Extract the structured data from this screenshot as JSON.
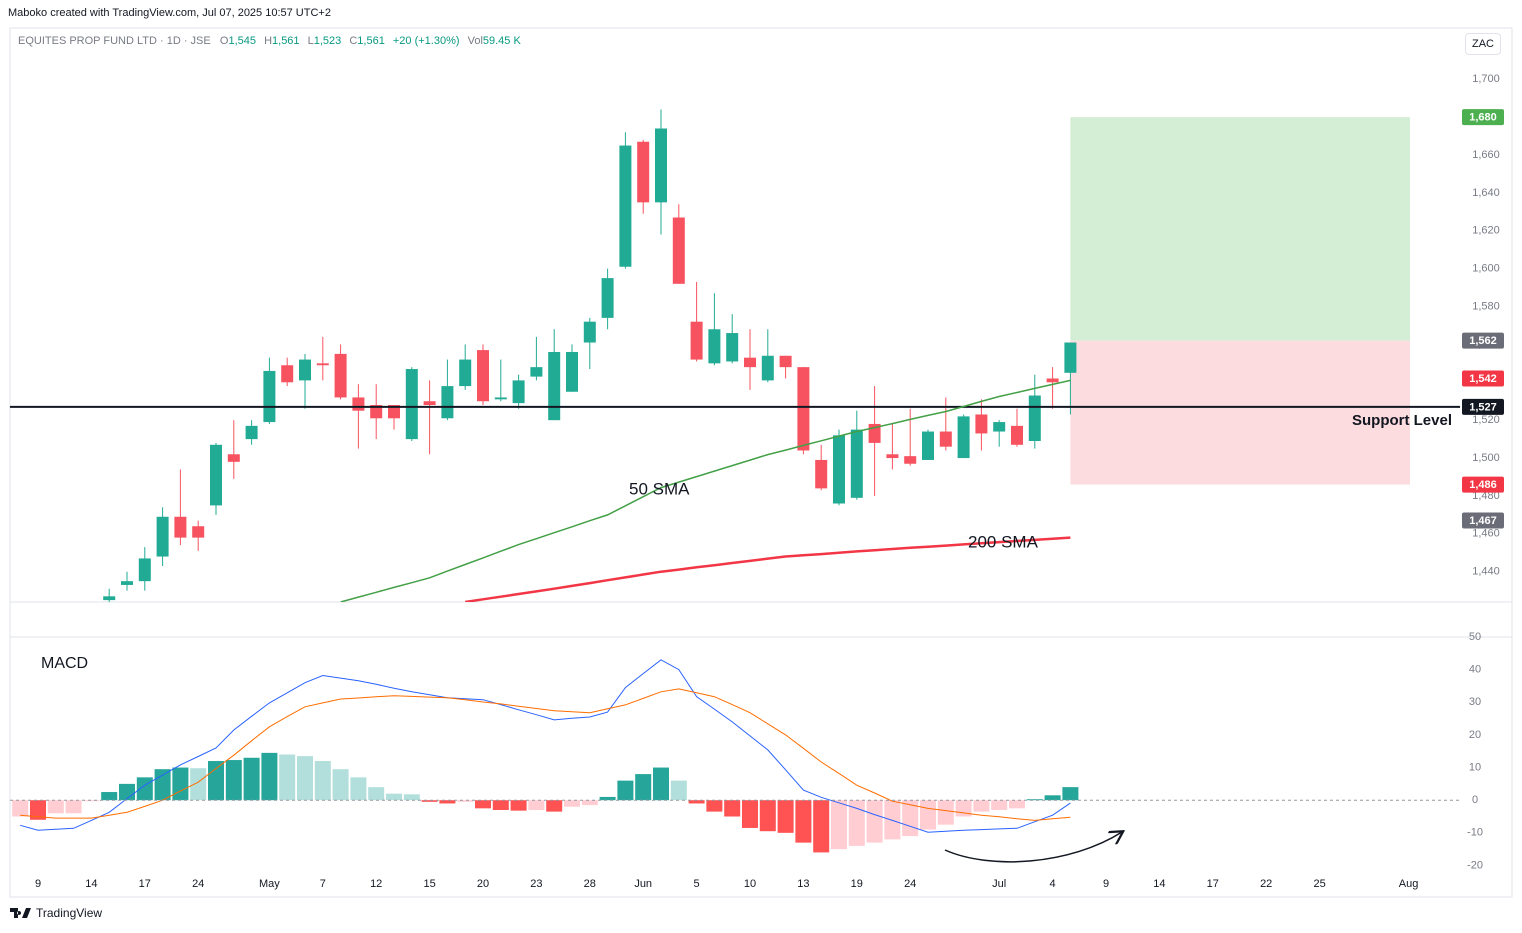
{
  "header": {
    "credit": "Maboko created with TradingView.com, Jul 07, 2025 10:57 UTC+2",
    "symbol": "EQUITES PROP FUND LTD · 1D · JSE",
    "ohlc": [
      {
        "label": "O",
        "value": "1,545"
      },
      {
        "label": "H",
        "value": "1,561"
      },
      {
        "label": "L",
        "value": "1,523"
      },
      {
        "label": "C",
        "value": "1,561"
      }
    ],
    "change": "+20 (+1.30%)",
    "volume": {
      "label": "Vol",
      "value": "59.45 K"
    },
    "currency": "ZAC"
  },
  "footer": {
    "brand": "TradingView"
  },
  "chart_data": {
    "type": "candlestick",
    "categories": [
      null,
      "9",
      null,
      null,
      "14",
      null,
      null,
      "17",
      null,
      null,
      "24",
      null,
      null,
      null,
      "May",
      null,
      null,
      "7",
      null,
      null,
      "12",
      null,
      null,
      "15",
      null,
      null,
      "20",
      null,
      null,
      "23",
      null,
      null,
      "28",
      null,
      null,
      "Jun",
      null,
      null,
      "5",
      null,
      null,
      "10",
      null,
      null,
      "13",
      null,
      null,
      "19",
      null,
      null,
      "24",
      null,
      null,
      null,
      null,
      "Jul",
      null,
      null,
      "4",
      null,
      null,
      "9",
      null,
      null,
      "14",
      null,
      null,
      "17",
      null,
      null,
      "22",
      null,
      null,
      "25",
      null,
      null,
      null,
      null,
      "Aug",
      null,
      null
    ],
    "open": [
      null,
      null,
      null,
      null,
      null,
      1425,
      1433,
      1435,
      1448,
      1469,
      1464,
      1475,
      1502,
      1510,
      1519,
      1549,
      1541,
      1550,
      1555,
      1532,
      1528,
      1528,
      1510,
      1530,
      1521,
      1538,
      1557,
      1531,
      1529,
      1543,
      1520,
      1535,
      1561,
      1574,
      1601,
      1667,
      1635,
      1627,
      1572,
      1550,
      1551,
      1553,
      1541,
      1554,
      1548,
      1499,
      1476,
      1479,
      1518,
      1502,
      1501,
      1499,
      1514,
      1500,
      1523,
      1514,
      1517,
      1509,
      1542,
      1545,
      null,
      null,
      null,
      null,
      null,
      null,
      null,
      null,
      null,
      null,
      null,
      null,
      null,
      null,
      null,
      null,
      null,
      null,
      null,
      null,
      null
    ],
    "high": [
      null,
      null,
      null,
      null,
      null,
      1431,
      1440,
      1453,
      1474,
      1494,
      1467,
      1508,
      1520,
      1520,
      1553,
      1553,
      1555,
      1564,
      1560,
      1539,
      1539,
      1528,
      1548,
      1541,
      1552,
      1560,
      1560,
      1552,
      1544,
      1564,
      1568,
      1560,
      1574,
      1600,
      1672,
      1668,
      1684,
      1634,
      1593,
      1587,
      1576,
      1568,
      1568,
      1554,
      1548,
      1507,
      1515,
      1525,
      1538,
      1518,
      1526,
      1515,
      1532,
      1523,
      1531,
      1520,
      1526,
      1544,
      1548,
      1561,
      null,
      null,
      null,
      null,
      null,
      null,
      null,
      null,
      null,
      null,
      null,
      null,
      null,
      null,
      null,
      null,
      null,
      null,
      null,
      null,
      null
    ],
    "low": [
      null,
      null,
      null,
      null,
      null,
      1424,
      1430,
      1430,
      1443,
      1454,
      1451,
      1470,
      1489,
      1507,
      1518,
      1538,
      1526,
      1541,
      1531,
      1505,
      1510,
      1515,
      1509,
      1502,
      1520,
      1536,
      1528,
      1530,
      1526,
      1541,
      1520,
      1535,
      1547,
      1568,
      1600,
      1629,
      1618,
      1592,
      1551,
      1549,
      1550,
      1536,
      1540,
      1542,
      1502,
      1483,
      1475,
      1478,
      1480,
      1494,
      1496,
      1499,
      1504,
      1500,
      1504,
      1506,
      1506,
      1505,
      1526,
      1523,
      null,
      null,
      null,
      null,
      null,
      null,
      null,
      null,
      null,
      null,
      null,
      null,
      null,
      null,
      null,
      null,
      null,
      null,
      null,
      null,
      null
    ],
    "close": [
      null,
      null,
      null,
      null,
      null,
      1427,
      1435,
      1447,
      1469,
      1458,
      1458,
      1507,
      1498,
      1517,
      1546,
      1540,
      1552,
      1549,
      1532,
      1525,
      1521,
      1521,
      1547,
      1528,
      1538,
      1552,
      1530,
      1532,
      1541,
      1548,
      1556,
      1556,
      1572,
      1595,
      1665,
      1635,
      1674,
      1592,
      1552,
      1568,
      1566,
      1548,
      1554,
      1548,
      1504,
      1484,
      1512,
      1515,
      1508,
      1500,
      1497,
      1514,
      1506,
      1522,
      1513,
      1519,
      1507,
      1533,
      1540,
      1561,
      null,
      null,
      null,
      null,
      null,
      null,
      null,
      null,
      null,
      null,
      null,
      null,
      null,
      null,
      null,
      null,
      null,
      null,
      null,
      null,
      null
    ],
    "up_color": "#22ab94",
    "down_color": "#f7525f",
    "series": [
      {
        "name": "50 SMA",
        "color": "#43a047",
        "values": [
          null,
          null,
          null,
          null,
          null,
          null,
          null,
          null,
          null,
          null,
          null,
          null,
          null,
          null,
          null,
          null,
          null,
          null,
          1424,
          1426.6,
          1429.1,
          1431.7,
          1434.2,
          1436.8,
          1440.3,
          1443.8,
          1447.3,
          1450.8,
          1454.3,
          1457.4,
          1460.6,
          1463.7,
          1466.9,
          1470,
          1474.8,
          1479.6,
          1484.4,
          1487.3,
          1490.2,
          1493.1,
          1496,
          1498.9,
          1501.8,
          1504.2,
          1506.7,
          1509.1,
          1511.6,
          1514,
          1516.1,
          1518.2,
          1520.4,
          1522.5,
          1524.6,
          1527.2,
          1529.9,
          1532.5,
          1534.6,
          1536.8,
          1538.9,
          1541,
          null,
          null,
          null,
          null,
          null,
          null,
          null,
          null,
          null,
          null,
          null,
          null,
          null,
          null,
          null,
          null,
          null,
          null,
          null,
          null,
          null
        ]
      },
      {
        "name": "200 SMA",
        "color": "#f23645",
        "values": [
          null,
          null,
          null,
          null,
          null,
          null,
          null,
          null,
          null,
          null,
          null,
          null,
          null,
          null,
          null,
          null,
          null,
          null,
          null,
          null,
          null,
          null,
          null,
          null,
          null,
          1424,
          1425.4,
          1426.8,
          1428.2,
          1429.6,
          1431,
          1432.5,
          1434,
          1435.5,
          1437,
          1438.5,
          1440,
          1441.1,
          1442.3,
          1443.4,
          1444.6,
          1445.7,
          1446.9,
          1448,
          1448.7,
          1449.3,
          1450,
          1450.7,
          1451.3,
          1452,
          1452.6,
          1453.2,
          1453.8,
          1454.4,
          1455,
          1455.6,
          1456.2,
          1456.8,
          1457.4,
          1458,
          null,
          null,
          null,
          null,
          null,
          null,
          null,
          null,
          null,
          null,
          null,
          null,
          null,
          null,
          null,
          null,
          null,
          null,
          null,
          null,
          null
        ]
      }
    ],
    "ylim": [
      1424,
      1726
    ],
    "yticks": [
      {
        "value": 1440,
        "label": "1,440"
      },
      {
        "value": 1460,
        "label": "1,460"
      },
      {
        "value": 1480,
        "label": "1,480"
      },
      {
        "value": 1500,
        "label": "1,500"
      },
      {
        "value": 1520,
        "label": "1,520"
      },
      {
        "value": 1540,
        "label": "1,540"
      },
      {
        "value": 1560,
        "label": "1,560"
      },
      {
        "value": 1580,
        "label": "1,580"
      },
      {
        "value": 1600,
        "label": "1,600"
      },
      {
        "value": 1620,
        "label": "1,620"
      },
      {
        "value": 1640,
        "label": "1,640"
      },
      {
        "value": 1660,
        "label": "1,660"
      },
      {
        "value": 1680,
        "label": "1,680"
      },
      {
        "value": 1700,
        "label": "1,700"
      }
    ],
    "grid": false,
    "support": {
      "value": 1527,
      "label": "Support Level"
    },
    "position": {
      "target": 1680,
      "entry": 1562,
      "stop": 1486,
      "profit_color": "#d3eed4",
      "loss_color": "#fcdcdf"
    },
    "price_labels": [
      {
        "value": 1680,
        "label": "1,680",
        "color": "#4caf50"
      },
      {
        "value": 1562,
        "label": "1,562",
        "color": "#6a6d78"
      },
      {
        "value": 1542,
        "label": "1,542",
        "color": "#f23645"
      },
      {
        "value": 1527,
        "label": "1,527",
        "color": "#131722"
      },
      {
        "value": 1486,
        "label": "1,486",
        "color": "#f23645"
      },
      {
        "value": 1467,
        "label": "1,467",
        "color": "#6a6d78"
      }
    ],
    "indicator": {
      "type": "macd",
      "title": "MACD",
      "histogram": [
        -5,
        -6,
        -4,
        -4,
        -0.3,
        2.5,
        5,
        7,
        9.5,
        10,
        9.8,
        12,
        12.3,
        13,
        14.5,
        14,
        13.5,
        12,
        9.5,
        7,
        4,
        2,
        1.8,
        -0.5,
        -1,
        -0.5,
        -2.5,
        -3,
        -3.2,
        -3,
        -3.5,
        -2,
        -1.5,
        1,
        6,
        8,
        10,
        6,
        -1,
        -3.5,
        -5,
        -8.5,
        -9.5,
        -10,
        -13,
        -16,
        -15,
        -14,
        -13,
        -12,
        -11,
        -9,
        -7.5,
        -5,
        -3.5,
        -3,
        -2.5,
        0.3,
        1.5,
        4,
        null,
        null,
        null,
        null,
        null,
        null,
        null,
        null,
        null,
        null,
        null,
        null,
        null,
        null,
        null,
        null,
        null,
        null,
        null,
        null,
        null
      ],
      "histogram_colors": [
        "#26a69a",
        "#b2dfdb",
        "#ff5252",
        "#ffcdd2"
      ],
      "series": [
        {
          "color": "#2962ff",
          "values": [
            -7.7,
            -9.2,
            -8.9,
            -8.6,
            -6.2,
            -3.7,
            0.5,
            4.6,
            7.7,
            10.8,
            13.4,
            16,
            21.5,
            25.7,
            29.8,
            32.9,
            36,
            38.2,
            37.4,
            36.6,
            35.5,
            34.3,
            33.2,
            32.3,
            31.4,
            31.1,
            30.8,
            29.3,
            27.7,
            26.2,
            24.6,
            25.1,
            25.5,
            27,
            34.5,
            38.8,
            43,
            40,
            31.7,
            27.9,
            24,
            19.7,
            15.4,
            9.3,
            3.1,
            0.9,
            -0.8,
            -2.5,
            -4.4,
            -6.2,
            -8,
            -9.8,
            -9.5,
            -9.2,
            -9,
            -8.8,
            -8.6,
            -6.6,
            -4.6,
            -0.9,
            null,
            null,
            null,
            null,
            null,
            null,
            null,
            null,
            null,
            null,
            null,
            null,
            null,
            null,
            null,
            null,
            null,
            null,
            null,
            null,
            null
          ]
        },
        {
          "color": "#ff6d00",
          "values": [
            -4.6,
            -5.1,
            -5.5,
            -5.5,
            -5.5,
            -4.6,
            -3.7,
            -1.9,
            0,
            2.8,
            5.5,
            9.7,
            13.8,
            18.2,
            22.5,
            25.6,
            28.6,
            29.8,
            31,
            31.3,
            31.7,
            32,
            31.8,
            31.6,
            31.4,
            30.8,
            30.1,
            29.5,
            28.8,
            28.1,
            27.4,
            27.1,
            26.8,
            28,
            29.2,
            31.2,
            33.2,
            34.1,
            32.9,
            31.7,
            29.3,
            26.8,
            23.4,
            20,
            15.9,
            11.7,
            8.2,
            4.6,
            2.2,
            -0.3,
            -1.4,
            -2.5,
            -3.2,
            -3.9,
            -4.6,
            -5.1,
            -5.7,
            -6.2,
            -5.7,
            -5.2,
            null,
            null,
            null,
            null,
            null,
            null,
            null,
            null,
            null,
            null,
            null,
            null,
            null,
            null,
            null,
            null,
            null,
            null,
            null,
            null,
            null
          ]
        }
      ],
      "ylim": [
        -22,
        50
      ],
      "yticks": [
        -20,
        -10,
        0,
        10,
        20,
        30,
        40,
        50
      ]
    }
  }
}
